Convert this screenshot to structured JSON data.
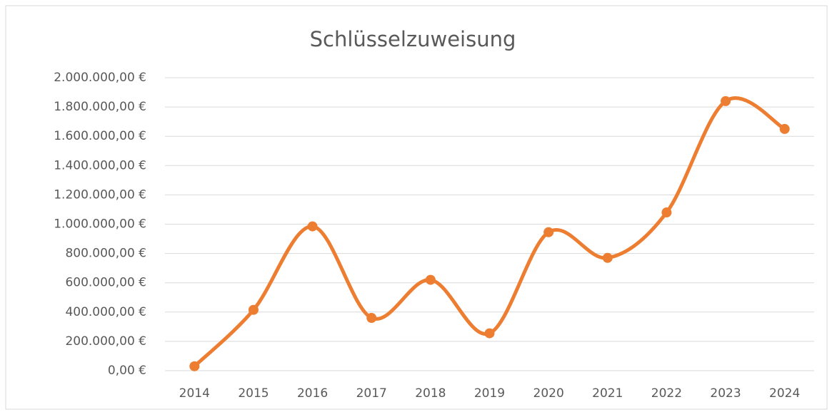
{
  "chart_data": {
    "type": "line",
    "title": "Schlüsselzuweisung",
    "categories": [
      "2014",
      "2015",
      "2016",
      "2017",
      "2018",
      "2019",
      "2020",
      "2021",
      "2022",
      "2023",
      "2024"
    ],
    "series": [
      {
        "name": "Schlüsselzuweisung",
        "color": "#ED7D31",
        "values": [
          30000,
          415000,
          985000,
          360000,
          620000,
          255000,
          945000,
          770000,
          1080000,
          1840000,
          1650000
        ]
      }
    ],
    "ylim": [
      0,
      2000000
    ],
    "yticks": [
      {
        "value": 0,
        "label": "0,00 €"
      },
      {
        "value": 200000,
        "label": "200.000,00 €"
      },
      {
        "value": 400000,
        "label": "400.000,00 €"
      },
      {
        "value": 600000,
        "label": "600.000,00 €"
      },
      {
        "value": 800000,
        "label": "800.000,00 €"
      },
      {
        "value": 1000000,
        "label": "1.000.000,00 €"
      },
      {
        "value": 1200000,
        "label": "1.200.000,00 €"
      },
      {
        "value": 1400000,
        "label": "1.400.000,00 €"
      },
      {
        "value": 1600000,
        "label": "1.600.000,00 €"
      },
      {
        "value": 1800000,
        "label": "1.800.000,00 €"
      },
      {
        "value": 2000000,
        "label": "2.000.000,00 €"
      }
    ],
    "grid": true,
    "smooth": true
  }
}
